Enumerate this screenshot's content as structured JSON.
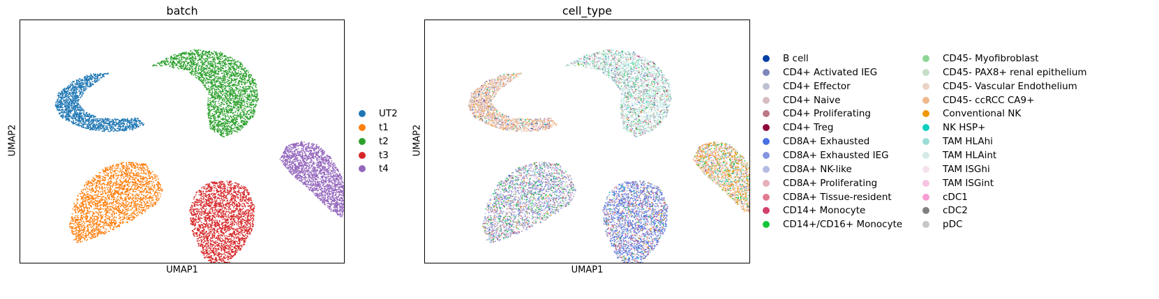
{
  "figure": {
    "panels": [
      {
        "title": "batch",
        "xlabel": "UMAP1",
        "ylabel": "UMAP2"
      },
      {
        "title": "cell_type",
        "xlabel": "UMAP1",
        "ylabel": "UMAP2"
      }
    ]
  },
  "chart_data": [
    {
      "type": "scatter",
      "title": "batch",
      "xlabel": "UMAP1",
      "ylabel": "UMAP2",
      "grid": false,
      "ticks": false,
      "legend_placement": "right",
      "series": [
        {
          "name": "UT2",
          "color": "#1f77b4"
        },
        {
          "name": "t1",
          "color": "#ff7f0e"
        },
        {
          "name": "t2",
          "color": "#2ca02c"
        },
        {
          "name": "t3",
          "color": "#d62728"
        },
        {
          "name": "t4",
          "color": "#9467bd"
        }
      ]
    },
    {
      "type": "scatter",
      "title": "cell_type",
      "xlabel": "UMAP1",
      "ylabel": "UMAP2",
      "grid": false,
      "ticks": false,
      "legend_placement": "right",
      "series": [
        {
          "name": "B cell",
          "color": "#023fa5"
        },
        {
          "name": "CD4+ Activated IEG",
          "color": "#7d87b9"
        },
        {
          "name": "CD4+ Effector",
          "color": "#bec1d4"
        },
        {
          "name": "CD4+ Naive",
          "color": "#d6bcc0"
        },
        {
          "name": "CD4+ Proliferating",
          "color": "#bb7784"
        },
        {
          "name": "CD4+ Treg",
          "color": "#8e063b"
        },
        {
          "name": "CD8A+ Exhausted",
          "color": "#4a6fe3"
        },
        {
          "name": "CD8A+ Exhausted IEG",
          "color": "#8595e1"
        },
        {
          "name": "CD8A+ NK-like",
          "color": "#b5bbe3"
        },
        {
          "name": "CD8A+ Proliferating",
          "color": "#e6afb9"
        },
        {
          "name": "CD8A+ Tissue-resident",
          "color": "#e07b91"
        },
        {
          "name": "CD14+ Monocyte",
          "color": "#d33f6a"
        },
        {
          "name": "CD14+/CD16+ Monocyte",
          "color": "#11c638"
        },
        {
          "name": "CD45- Myofibroblast",
          "color": "#8dd593"
        },
        {
          "name": "CD45- PAX8+ renal epithelium",
          "color": "#c6dec7"
        },
        {
          "name": "CD45- Vascular Endothelium",
          "color": "#ead3c6"
        },
        {
          "name": "CD45- ccRCC CA9+",
          "color": "#f0b98d"
        },
        {
          "name": "Conventional NK",
          "color": "#ef9708"
        },
        {
          "name": "NK HSP+",
          "color": "#0fcfc0"
        },
        {
          "name": "TAM HLAhi",
          "color": "#9cded6"
        },
        {
          "name": "TAM HLAint",
          "color": "#d5eae7"
        },
        {
          "name": "TAM ISGhi",
          "color": "#f3e1eb"
        },
        {
          "name": "TAM ISGint",
          "color": "#f6c4e1"
        },
        {
          "name": "cDC1",
          "color": "#f79cd4"
        },
        {
          "name": "cDC2",
          "color": "#7f7f7f"
        },
        {
          "name": "pDC",
          "color": "#c7c7c7"
        }
      ]
    }
  ]
}
